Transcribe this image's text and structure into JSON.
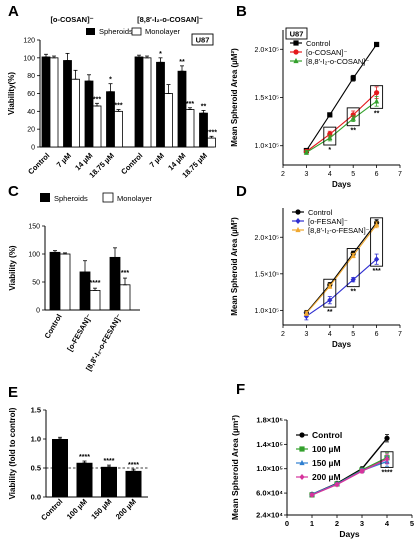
{
  "chart_data": [
    {
      "panel": "A",
      "type": "bar",
      "label_box": "U87",
      "groups": [
        "[o-COSAN]⁻",
        "[8,8′-I₂-o-COSAN]⁻"
      ],
      "categories": [
        "Control",
        "7 µM",
        "14 µM",
        "18.75 µM",
        "Control",
        "7 µM",
        "14 µM",
        "18.75 µM"
      ],
      "series": [
        {
          "name": "Spheroids",
          "color": "#000000",
          "values": [
            101,
            97,
            74,
            62,
            101,
            95,
            85,
            38
          ],
          "errors": [
            3,
            8,
            7,
            9,
            2,
            5,
            6,
            3
          ],
          "stars": [
            "",
            "",
            "",
            "*",
            "",
            "*",
            "**",
            "**"
          ]
        },
        {
          "name": "Monolayer",
          "color": "#ffffff",
          "values": [
            100,
            76,
            46,
            40,
            100,
            60,
            42,
            10
          ],
          "errors": [
            2,
            10,
            3,
            2,
            2,
            10,
            2,
            2
          ],
          "stars": [
            "",
            "",
            "***",
            "***",
            "",
            "",
            "***",
            "****"
          ]
        }
      ],
      "ylabel": "Viability(%)",
      "yticks": [
        0,
        20,
        40,
        60,
        80,
        100,
        120
      ],
      "ylim": [
        0,
        120
      ]
    },
    {
      "panel": "B",
      "type": "line",
      "label_box": "U87",
      "xlabel": "Days",
      "ylabel": "Mean Spheroid Area (µM²)",
      "xlim": [
        2,
        7
      ],
      "xticks": [
        2,
        3,
        4,
        5,
        6,
        7
      ],
      "ylim": [
        80000,
        220000
      ],
      "yticks": [
        {
          "v": 100000,
          "t": "1.0×10⁵"
        },
        {
          "v": 150000,
          "t": "1.5×10⁵"
        },
        {
          "v": 200000,
          "t": "2.0×10⁵"
        }
      ],
      "series": [
        {
          "name": "Control",
          "color": "#000000",
          "marker": "square",
          "x": [
            3,
            4,
            5,
            6
          ],
          "y": [
            95000,
            132000,
            170000,
            205000
          ],
          "err": [
            2000,
            2000,
            3000,
            2000
          ]
        },
        {
          "name": "[o-COSAN]⁻",
          "color": "#e41a1c",
          "marker": "circle",
          "x": [
            3,
            4,
            5,
            6
          ],
          "y": [
            94000,
            112000,
            132000,
            155000
          ],
          "err": [
            2000,
            3000,
            4000,
            6000
          ]
        },
        {
          "name": "[8,8′-I₂-o-COSAN]⁻",
          "color": "#33a02c",
          "marker": "triangle",
          "x": [
            3,
            4,
            5,
            6
          ],
          "y": [
            93000,
            108000,
            128000,
            146000
          ],
          "err": [
            2000,
            3000,
            3000,
            5000
          ]
        }
      ],
      "annotations": [
        {
          "x": 4,
          "text": "*"
        },
        {
          "x": 5,
          "text": "**"
        },
        {
          "x": 6,
          "text": "**"
        }
      ]
    },
    {
      "panel": "C",
      "type": "bar",
      "categories": [
        "Control",
        "[o-FESAN]⁻",
        "[8,8′-I₂-o-FESAN]⁻"
      ],
      "series": [
        {
          "name": "Spheroids",
          "color": "#000000",
          "values": [
            103,
            68,
            94
          ],
          "errors": [
            3,
            20,
            17
          ],
          "stars": [
            "",
            "",
            ""
          ]
        },
        {
          "name": "Monolayer",
          "color": "#ffffff",
          "values": [
            100,
            35,
            45
          ],
          "errors": [
            2,
            4,
            12
          ],
          "stars": [
            "",
            "****",
            "***"
          ]
        }
      ],
      "ylabel": "Viability (%)",
      "yticks": [
        0,
        50,
        100,
        150
      ],
      "ylim": [
        0,
        150
      ]
    },
    {
      "panel": "D",
      "type": "line",
      "xlabel": "Days",
      "ylabel": "Mean Spheroid Area (µM²)",
      "xlim": [
        2,
        7
      ],
      "xticks": [
        2,
        3,
        4,
        5,
        6,
        7
      ],
      "ylim": [
        80000,
        240000
      ],
      "yticks": [
        {
          "v": 100000,
          "t": "1.0×10⁵"
        },
        {
          "v": 150000,
          "t": "1.5×10⁵"
        },
        {
          "v": 200000,
          "t": "2.0×10⁵"
        }
      ],
      "series": [
        {
          "name": "Control",
          "color": "#000000",
          "marker": "circle",
          "x": [
            3,
            4,
            5,
            6
          ],
          "y": [
            97000,
            135000,
            178000,
            220000
          ],
          "err": [
            3000,
            3000,
            3000,
            4000
          ]
        },
        {
          "name": "[o-FESAN]⁻",
          "color": "#2f2fd0",
          "marker": "diamond",
          "x": [
            3,
            4,
            5,
            6
          ],
          "y": [
            92000,
            114000,
            142000,
            170000
          ],
          "err": [
            5000,
            5000,
            3000,
            7000
          ]
        },
        {
          "name": "[8,8′-I₂-o-FESAN]⁻",
          "color": "#f0a830",
          "marker": "triangle",
          "x": [
            3,
            4,
            5,
            6
          ],
          "y": [
            96000,
            133000,
            175000,
            217000
          ],
          "err": [
            3000,
            3000,
            3000,
            4000
          ]
        }
      ],
      "annotations": [
        {
          "x": 4,
          "text": "**"
        },
        {
          "x": 5,
          "text": "**"
        },
        {
          "x": 6,
          "text": "***"
        }
      ]
    },
    {
      "panel": "E",
      "type": "bar",
      "categories": [
        "Control",
        "100 µM",
        "150 µM",
        "200 µM"
      ],
      "values": [
        1.0,
        0.59,
        0.52,
        0.45
      ],
      "errors": [
        0.03,
        0.03,
        0.03,
        0.03
      ],
      "stars": [
        "",
        "****",
        "****",
        "****"
      ],
      "ylabel": "Viability (fold to control)",
      "yticks": [
        {
          "v": 0.0,
          "t": "0.0"
        },
        {
          "v": 0.5,
          "t": "0.5"
        },
        {
          "v": 1.0,
          "t": "1.0"
        },
        {
          "v": 1.5,
          "t": "1.5"
        }
      ],
      "ylim": [
        0,
        1.5
      ],
      "reference_line": 0.5
    },
    {
      "panel": "F",
      "type": "line",
      "xlabel": "Days",
      "ylabel": "Mean Spheroid Area (µm²)",
      "xlim": [
        0,
        5
      ],
      "xticks": [
        0,
        1,
        2,
        3,
        4,
        5
      ],
      "ylim": [
        24000,
        180000
      ],
      "yticks": [
        {
          "v": 24000,
          "t": "2.4×10⁴"
        },
        {
          "v": 60000,
          "t": "6.0×10⁴"
        },
        {
          "v": 100000,
          "t": "1.0×10⁵"
        },
        {
          "v": 140000,
          "t": "1.4×10⁵"
        },
        {
          "v": 180000,
          "t": "1.8×10⁵"
        }
      ],
      "series": [
        {
          "name": "Control",
          "color": "#000000",
          "marker": "circle",
          "x": [
            1,
            2,
            3,
            4
          ],
          "y": [
            58000,
            76000,
            100000,
            150000
          ],
          "err": [
            2000,
            2000,
            3000,
            6000
          ]
        },
        {
          "name": "100 µM",
          "color": "#33a02c",
          "marker": "square",
          "x": [
            1,
            2,
            3,
            4
          ],
          "y": [
            57000,
            75000,
            98000,
            118000
          ],
          "err": [
            2000,
            2000,
            3000,
            8000
          ]
        },
        {
          "name": "150 µM",
          "color": "#2f7fd0",
          "marker": "triangle",
          "x": [
            1,
            2,
            3,
            4
          ],
          "y": [
            58000,
            75000,
            97000,
            112000
          ],
          "err": [
            2000,
            2000,
            3000,
            8000
          ]
        },
        {
          "name": "200 µM",
          "color": "#d6339c",
          "marker": "diamond",
          "x": [
            1,
            2,
            3,
            4
          ],
          "y": [
            57000,
            74000,
            96000,
            116000
          ],
          "err": [
            2000,
            2000,
            3000,
            8000
          ]
        }
      ],
      "annotations": [
        {
          "x": 4,
          "text": "****"
        }
      ]
    }
  ]
}
